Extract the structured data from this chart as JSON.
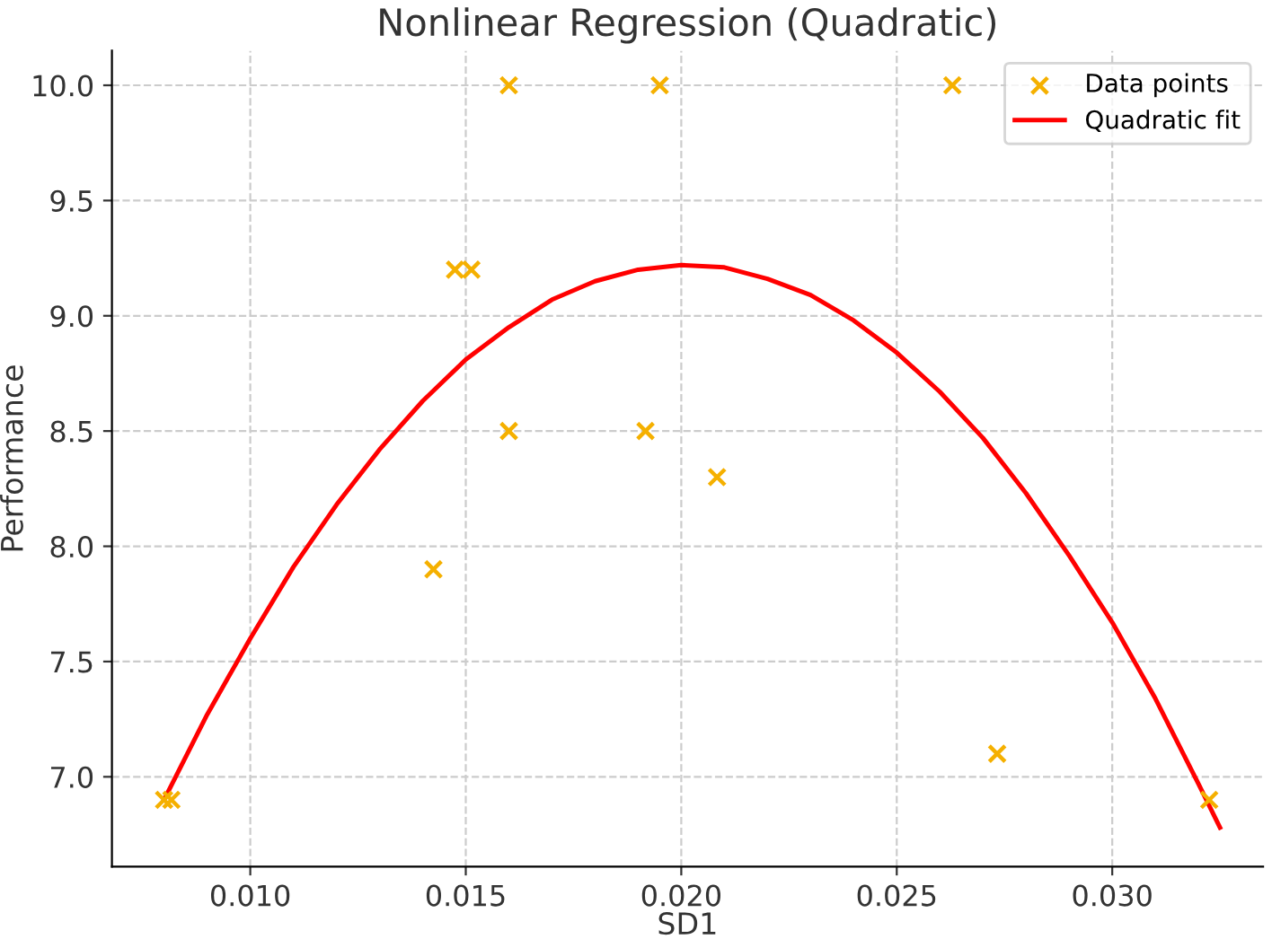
{
  "chart_data": {
    "type": "scatter",
    "title": "Nonlinear Regression (Quadratic)",
    "xlabel": "SD1",
    "ylabel": "Performance",
    "series": [
      {
        "name": "Data points",
        "color": "#f5b000",
        "marker": "cross",
        "x": [
          0.008,
          0.00817,
          0.01425,
          0.01475,
          0.01513,
          0.016,
          0.016,
          0.01917,
          0.0195,
          0.02083,
          0.02629,
          0.02733,
          0.03225
        ],
        "values": [
          6.9,
          6.9,
          7.9,
          9.2,
          9.2,
          10.0,
          8.5,
          8.5,
          10.0,
          8.3,
          10.0,
          7.1,
          6.9
        ]
      },
      {
        "name": "Quadratic fit",
        "type": "line",
        "color": "#ff0000",
        "x": [
          0.008,
          0.009,
          0.01,
          0.011,
          0.012,
          0.013,
          0.014,
          0.015,
          0.016,
          0.017,
          0.018,
          0.019,
          0.02,
          0.021,
          0.022,
          0.023,
          0.024,
          0.025,
          0.026,
          0.027,
          0.028,
          0.029,
          0.03,
          0.031,
          0.032,
          0.0325
        ],
        "values": [
          6.9,
          7.27,
          7.6,
          7.91,
          8.18,
          8.42,
          8.63,
          8.81,
          8.95,
          9.07,
          9.15,
          9.2,
          9.22,
          9.21,
          9.16,
          9.09,
          8.98,
          8.84,
          8.67,
          8.47,
          8.23,
          7.96,
          7.67,
          7.34,
          6.97,
          6.78
        ]
      }
    ],
    "xlim": [
      0.00679,
      0.0335
    ],
    "ylim": [
      6.61,
      10.15
    ],
    "xticks": [
      {
        "value": 0.01,
        "label": "0.010"
      },
      {
        "value": 0.015,
        "label": "0.015"
      },
      {
        "value": 0.02,
        "label": "0.020"
      },
      {
        "value": 0.025,
        "label": "0.025"
      },
      {
        "value": 0.03,
        "label": "0.030"
      }
    ],
    "yticks": [
      {
        "value": 7.0,
        "label": "7.0"
      },
      {
        "value": 7.5,
        "label": "7.5"
      },
      {
        "value": 8.0,
        "label": "8.0"
      },
      {
        "value": 8.5,
        "label": "8.5"
      },
      {
        "value": 9.0,
        "label": "9.0"
      },
      {
        "value": 9.5,
        "label": "9.5"
      },
      {
        "value": 10.0,
        "label": "10.0"
      }
    ],
    "grid": true,
    "legend": "top right"
  }
}
